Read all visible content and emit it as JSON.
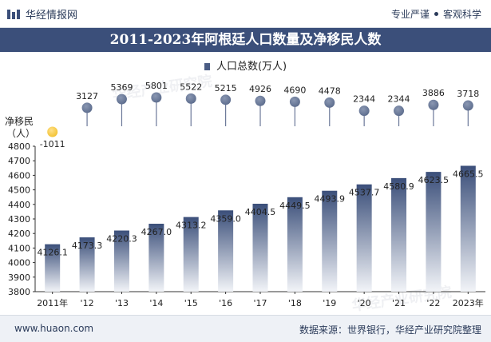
{
  "header": {
    "brand": "华经情报网",
    "tags": [
      "专业严谨",
      "客观科学"
    ]
  },
  "title": "2011-2023年阿根廷人口数量及净移民人数",
  "legend": "人口总数(万人)",
  "footer": {
    "url": "www.huaon.com",
    "source": "数据来源：世界银行，华经产业研究院整理"
  },
  "watermark": "华经产业研究院",
  "colors": {
    "bar_top": "#3b4f7a",
    "bar_bottom": "#f2f4f8",
    "bubble": "#5b6b8c",
    "bubble_negative": "#f2c12e",
    "title_bg": "#3b4f7a"
  },
  "chart_data": [
    {
      "type": "bar",
      "categories": [
        "2011年",
        "'12",
        "'13",
        "'14",
        "'15",
        "'16",
        "'17",
        "'18",
        "'19",
        "'20",
        "'21",
        "'22",
        "2023年"
      ],
      "series": [
        {
          "name": "人口总数(万人)",
          "values": [
            4126.1,
            4173.3,
            4220.3,
            4267.0,
            4313.2,
            4359.0,
            4404.5,
            4449.5,
            4493.9,
            4537.7,
            4580.9,
            4623.5,
            4665.5
          ],
          "labels": [
            "4126.1",
            "4173.3",
            "4220.3",
            "4267.0",
            "4313.2",
            "4359.0",
            "4404.5",
            "4449.5",
            "4493.9",
            "4537.7",
            "4580.9",
            "4623.5",
            "4665.5"
          ]
        }
      ],
      "ylim": [
        3800,
        4800
      ],
      "yticks": [
        "3800",
        "3900",
        "4000",
        "4100",
        "4200",
        "4300",
        "4400",
        "4500",
        "4600",
        "4700",
        "4800"
      ]
    },
    {
      "type": "scatter",
      "ylabel": "净移民（人）",
      "series": [
        {
          "values": [
            -1011,
            3127,
            5369,
            5801,
            5522,
            5215,
            4926,
            4690,
            4478,
            2344,
            2344,
            3886,
            3718
          ],
          "labels": [
            "-1011",
            "3127",
            "5369",
            "5801",
            "5522",
            "5215",
            "4926",
            "4690",
            "4478",
            "2344",
            "2344",
            "3886",
            "3718"
          ]
        }
      ]
    }
  ]
}
